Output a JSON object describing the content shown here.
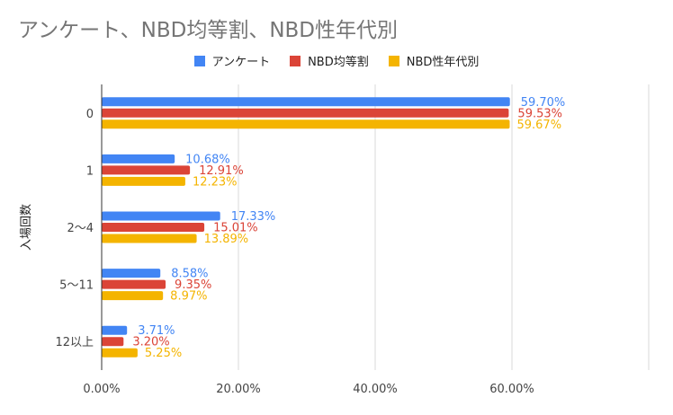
{
  "title": "アンケート、NBD均等割、NBD性年代別",
  "chart_data": {
    "type": "bar",
    "orientation": "horizontal",
    "title": "アンケート、NBD均等割、NBD性年代別",
    "xlabel": "",
    "ylabel": "入場回数",
    "categories": [
      "0",
      "1",
      "2〜4",
      "5〜11",
      "12以上"
    ],
    "series": [
      {
        "name": "アンケート",
        "color": "#4285F4",
        "values": [
          59.7,
          10.68,
          17.33,
          8.58,
          3.71
        ],
        "labels": [
          "59.70%",
          "10.68%",
          "17.33%",
          "8.58%",
          "3.71%"
        ]
      },
      {
        "name": "NBD均等割",
        "color": "#DB4437",
        "values": [
          59.53,
          12.91,
          15.01,
          9.35,
          3.2
        ],
        "labels": [
          "59.53%",
          "12.91%",
          "15.01%",
          "9.35%",
          "3.20%"
        ]
      },
      {
        "name": "NBD性年代別",
        "color": "#F4B400",
        "values": [
          59.67,
          12.23,
          13.89,
          8.97,
          5.25
        ],
        "labels": [
          "59.67%",
          "12.23%",
          "13.89%",
          "8.97%",
          "5.25%"
        ]
      }
    ],
    "xlim": [
      0,
      80
    ],
    "xticks": [
      0,
      20,
      40,
      60
    ],
    "xtick_labels": [
      "0.00%",
      "20.00%",
      "40.00%",
      "60.00%"
    ],
    "grid": true,
    "legend": "top"
  }
}
